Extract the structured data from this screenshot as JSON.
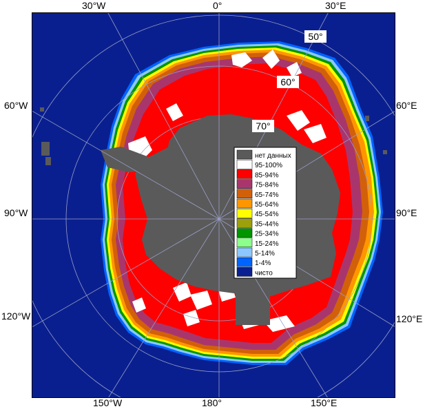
{
  "map": {
    "colors": {
      "ocean": "#0a1f8f",
      "land": "#5a5a5a",
      "frame": "#000000",
      "grid": "#9aa0c8"
    },
    "lon_labels": {
      "top": [
        "30°W",
        "0°",
        "30°E"
      ],
      "bottom": [
        "150°W",
        "180°",
        "150°E"
      ],
      "left": [
        "60°W",
        "90°W",
        "120°W"
      ],
      "right": [
        "60°E",
        "90°E",
        "120°E"
      ]
    },
    "lat_labels": [
      "50°",
      "60°",
      "70°"
    ],
    "legend": [
      {
        "label": "нет данных",
        "color": "#5a5a5a"
      },
      {
        "label": "95-100%",
        "color": "#ffffff"
      },
      {
        "label": "85-94%",
        "color": "#ff0000"
      },
      {
        "label": "75-84%",
        "color": "#a8366c"
      },
      {
        "label": "65-74%",
        "color": "#d2600a"
      },
      {
        "label": "55-64%",
        "color": "#ff9600"
      },
      {
        "label": "45-54%",
        "color": "#ffff00"
      },
      {
        "label": "35-44%",
        "color": "#9ca00a"
      },
      {
        "label": "25-34%",
        "color": "#009600"
      },
      {
        "label": "15-24%",
        "color": "#8cff8c"
      },
      {
        "label": "5-14%",
        "color": "#8cc8ff"
      },
      {
        "label": "1-4%",
        "color": "#0064ff"
      },
      {
        "label": "чисто",
        "color": "#0a1f8f"
      }
    ]
  }
}
